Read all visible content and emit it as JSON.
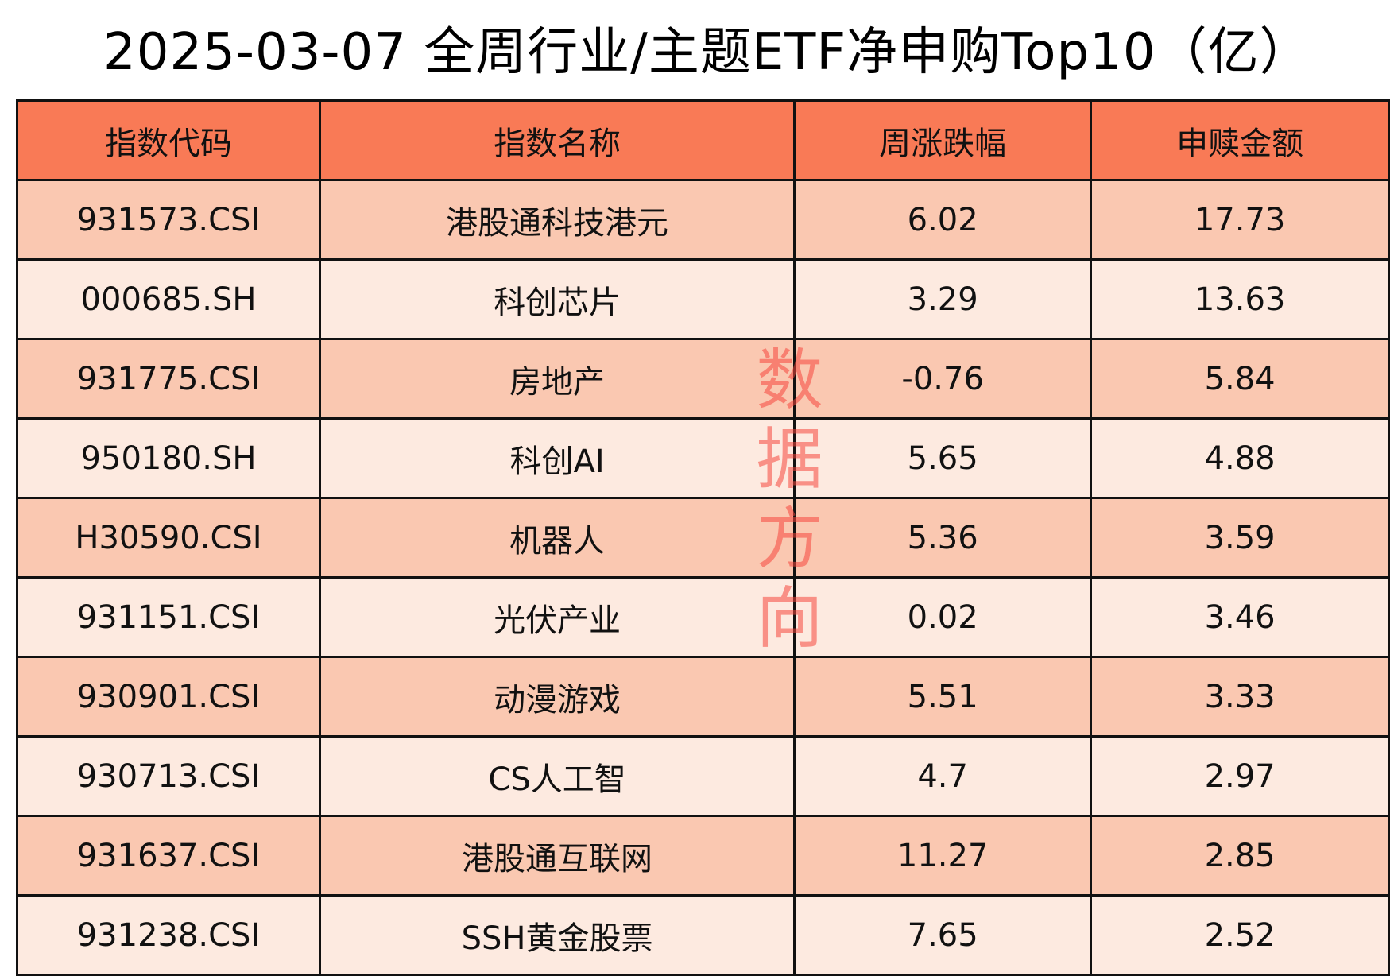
{
  "title": "2025-03-07 全周行业/主题ETF净申购Top10（亿）",
  "watermark": "数据方向",
  "colors": {
    "header": "#F97A56",
    "row_dark": "#FAC8B1",
    "row_light": "#FDEAE0",
    "watermark": "#F5463C"
  },
  "table": {
    "headers": [
      "指数代码",
      "指数名称",
      "周涨跌幅",
      "申赎金额"
    ],
    "rows": [
      [
        "931573.CSI",
        "港股通科技港元",
        "6.02",
        "17.73"
      ],
      [
        "000685.SH",
        "科创芯片",
        "3.29",
        "13.63"
      ],
      [
        "931775.CSI",
        "房地产",
        "-0.76",
        "5.84"
      ],
      [
        "950180.SH",
        "科创AI",
        "5.65",
        "4.88"
      ],
      [
        "H30590.CSI",
        "机器人",
        "5.36",
        "3.59"
      ],
      [
        "931151.CSI",
        "光伏产业",
        "0.02",
        "3.46"
      ],
      [
        "930901.CSI",
        "动漫游戏",
        "5.51",
        "3.33"
      ],
      [
        "930713.CSI",
        "CS人工智",
        "4.7",
        "2.97"
      ],
      [
        "931637.CSI",
        "港股通互联网",
        "11.27",
        "2.85"
      ],
      [
        "931238.CSI",
        "SSH黄金股票",
        "7.65",
        "2.52"
      ]
    ]
  }
}
